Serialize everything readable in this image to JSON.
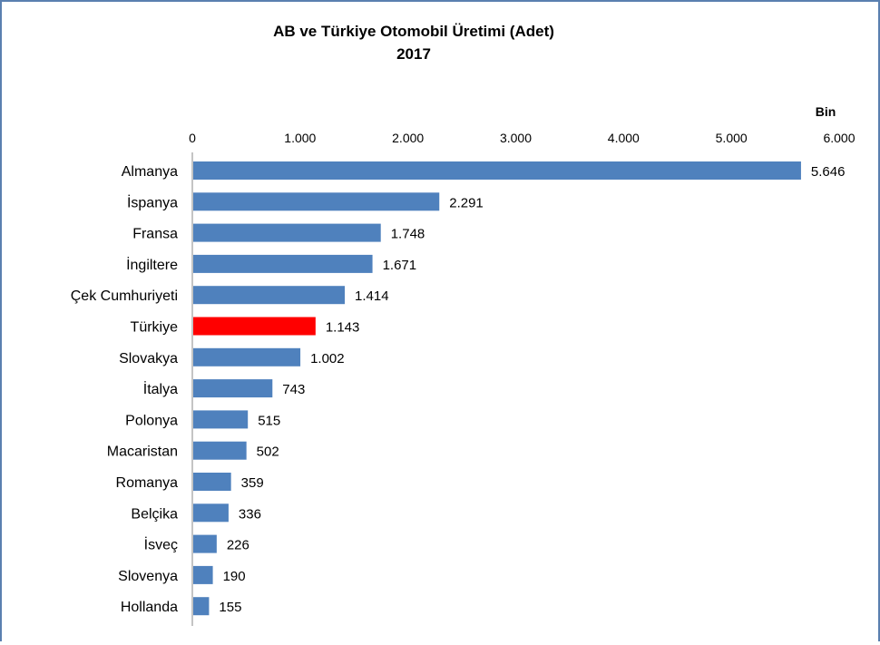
{
  "chart_data": {
    "type": "bar",
    "orientation": "horizontal",
    "title": "AB ve Türkiye Otomobil Üretimi (Adet)",
    "subtitle": "2017",
    "unit_label": "Bin",
    "xlim": [
      0,
      6000
    ],
    "x_ticks": [
      0,
      1000,
      2000,
      3000,
      4000,
      5000,
      6000
    ],
    "x_tick_labels": [
      "0",
      "1.000",
      "2.000",
      "3.000",
      "4.000",
      "5.000",
      "6.000"
    ],
    "axis_position": "top",
    "grid": false,
    "legend": "none",
    "categories": [
      "Almanya",
      "İspanya",
      "Fransa",
      "İngiltere",
      "Çek Cumhuriyeti",
      "Türkiye",
      "Slovakya",
      "İtalya",
      "Polonya",
      "Macaristan",
      "Romanya",
      "Belçika",
      "İsveç",
      "Slovenya",
      "Hollanda"
    ],
    "values": [
      5646,
      2291,
      1748,
      1671,
      1414,
      1143,
      1002,
      743,
      515,
      502,
      359,
      336,
      226,
      190,
      155
    ],
    "value_labels": [
      "5.646",
      "2.291",
      "1.748",
      "1.671",
      "1.414",
      "1.143",
      "1.002",
      "743",
      "515",
      "502",
      "359",
      "336",
      "226",
      "190",
      "155"
    ],
    "colors": {
      "default": "#4f81bd",
      "highlight": "#ff0000",
      "frame": "#5a7fb0"
    },
    "highlight_category": "Türkiye"
  }
}
